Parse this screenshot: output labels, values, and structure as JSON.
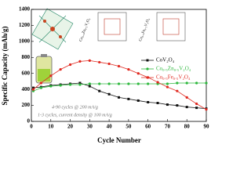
{
  "chart_data": {
    "type": "line",
    "x_label": "Cycle Number",
    "y_label": "Specific Capacity (mAh/g)",
    "x": [
      1,
      5,
      10,
      15,
      20,
      25,
      30,
      35,
      40,
      45,
      50,
      55,
      60,
      65,
      70,
      75,
      80,
      85,
      90
    ],
    "series": [
      {
        "name": "CoV₂O₄",
        "color": "#111111",
        "marker": "square",
        "values": [
          420,
          430,
          450,
          460,
          470,
          480,
          440,
          380,
          340,
          300,
          280,
          260,
          240,
          230,
          210,
          200,
          180,
          170,
          160
        ]
      },
      {
        "name": "Co₀.₅Zn₀.₅V₂O₄",
        "color": "#2db83d",
        "marker": "circle",
        "values": [
          380,
          420,
          440,
          450,
          460,
          460,
          470,
          470,
          470,
          470,
          470,
          470,
          470,
          470,
          470,
          480,
          480,
          480,
          480
        ]
      },
      {
        "name": "Co₀.₅Fe₀.₅V₂O₄",
        "color": "#e0281f",
        "marker": "circle",
        "values": [
          400,
          480,
          570,
          650,
          710,
          750,
          760,
          740,
          720,
          690,
          650,
          600,
          550,
          490,
          430,
          380,
          300,
          220,
          150
        ]
      }
    ],
    "xlim": [
      0,
      90
    ],
    "xticks": [
      0,
      10,
      20,
      30,
      40,
      50,
      60,
      70,
      80,
      90
    ],
    "ylim": [
      0,
      1400
    ],
    "yticks": [
      0,
      200,
      400,
      600,
      800,
      1000,
      1200,
      1400
    ],
    "annotations": [
      "4-90 cycles @ 200 mA/g",
      "1-3 cycles, current density @ 100 mA/g"
    ],
    "inset_labels": [
      "Co₀.₅Zn₀.₅V₂O₄",
      "Co₀.₅Fe₀.₅V₂O₄"
    ]
  }
}
